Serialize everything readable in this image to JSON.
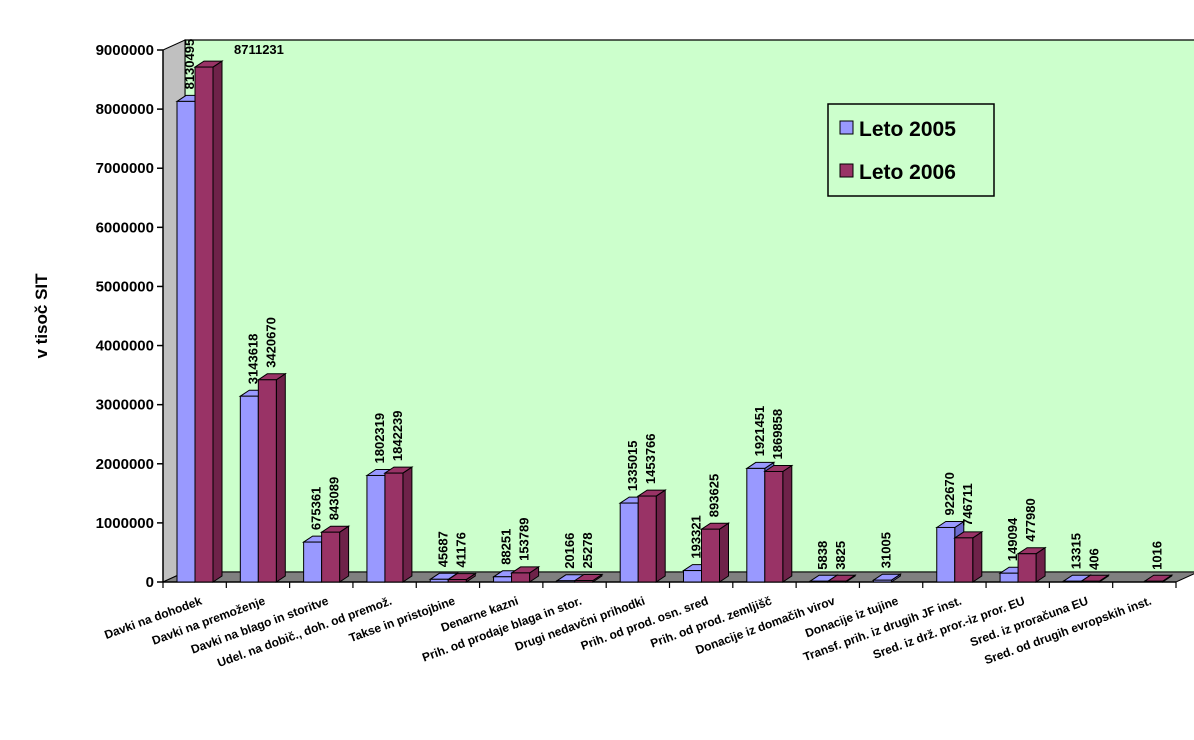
{
  "chart_data": {
    "type": "bar",
    "ylabel": "v tisoč SIT",
    "xlabel": "",
    "ylim": [
      0,
      9000000
    ],
    "yticks": [
      0,
      1000000,
      2000000,
      3000000,
      4000000,
      5000000,
      6000000,
      7000000,
      8000000,
      9000000
    ],
    "grid": false,
    "legend_position": "top-right",
    "categories": [
      "Davki na dohodek",
      "Davki na premoženje",
      "Davki na blago in storitve",
      "Udel. na dobič., doh. od premož.",
      "Takse in pristojbine",
      "Denarne kazni",
      "Prih. od prodaje blaga in stor.",
      "Drugi nedavčni prihodki",
      "Prih. od prod. osn. sred",
      "Prih. od prod. zemljišč",
      "Donacije iz domačih virov",
      "Donacije iz tujine",
      "Transf. prih. iz drugih JF inst.",
      "Sred. iz drž. pror.-iz pror. EU",
      "Sred. iz proračuna EU",
      "Sred. od drugih evropskih inst."
    ],
    "series": [
      {
        "name": "Leto 2005",
        "color": "#9999ff",
        "values": [
          8130495,
          3143618,
          675361,
          1802319,
          45687,
          88251,
          20166,
          1335015,
          193321,
          1921451,
          5838,
          31005,
          922670,
          149094,
          13315,
          null
        ],
        "labels": [
          "8130495",
          "3143618",
          "675361",
          "1802319",
          "45687",
          "88251",
          "20166",
          "1335015",
          "193321",
          "1921451",
          "5838",
          "31005",
          "922670",
          "149094",
          "13315",
          ""
        ]
      },
      {
        "name": "Leto 2006",
        "color": "#993366",
        "values": [
          8711231,
          3420670,
          843089,
          1842239,
          41176,
          153789,
          25278,
          1453766,
          893625,
          1869858,
          3825,
          null,
          746711,
          477980,
          406,
          1016
        ],
        "labels": [
          "8711231",
          "3420670",
          "843089",
          "1842239",
          "41176",
          "153789",
          "25278",
          "1453766",
          "893625",
          "1869858",
          "3825",
          "",
          "746711",
          "477980",
          "406",
          "1016"
        ]
      }
    ],
    "colors": {
      "wall": "#ccffcc",
      "floor": "#808080",
      "series1": "#9999ff",
      "series1_dark": "#6b6bd0",
      "series2": "#993366",
      "series2_dark": "#6e2249"
    }
  }
}
